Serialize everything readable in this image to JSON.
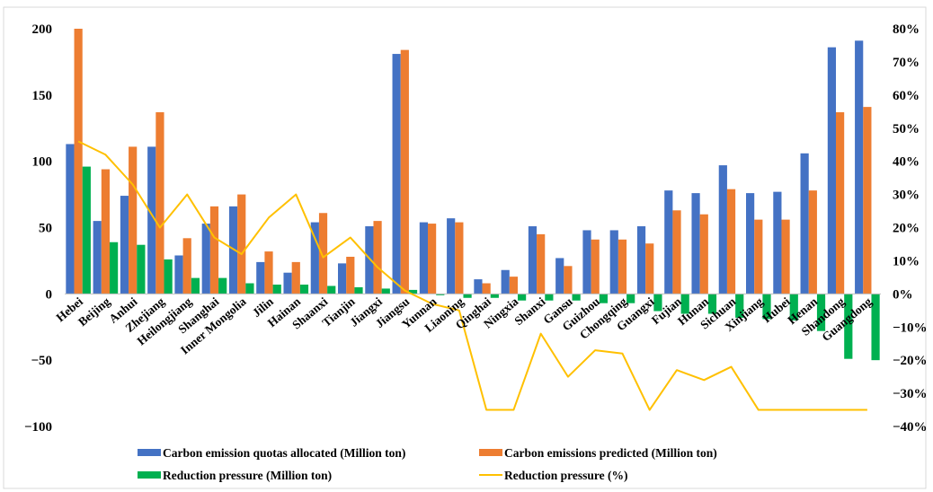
{
  "chart_data": {
    "type": "bar",
    "title": "",
    "xlabel": "",
    "ylabel": "",
    "y2label": "",
    "ylim": [
      -100,
      200
    ],
    "yticks": [
      -100,
      -50,
      0,
      50,
      100,
      150,
      200
    ],
    "y2lim": [
      -40,
      80
    ],
    "y2ticks": [
      -40,
      -30,
      -20,
      -10,
      0,
      10,
      20,
      30,
      40,
      50,
      60,
      70,
      80
    ],
    "y2_tick_suffix": "%",
    "grid": false,
    "legend_position": "bottom",
    "categories": [
      "Hebei",
      "Beijing",
      "Anhui",
      "Zhejiang",
      "Heilongjiang",
      "Shanghai",
      "Inner Mongolia",
      "Jilin",
      "Hainan",
      "Shaanxi",
      "Tianjin",
      "Jiangxi",
      "Jiangsu",
      "Yunnan",
      "Liaoning",
      "Qinghai",
      "Ningxia",
      "Shanxi",
      "Gansu",
      "Guizhou",
      "Chongqing",
      "Guangxi",
      "Fujian",
      "Hunan",
      "Sichuan",
      "Xinjiang",
      "Hubei",
      "Henan",
      "Shandong",
      "Guangdong"
    ],
    "series": [
      {
        "name": "Carbon emission quotas allocated (Million ton)",
        "kind": "bar",
        "axis": "left",
        "color": "#4472C4",
        "values": [
          113,
          55,
          74,
          111,
          29,
          53,
          66,
          24,
          16,
          54,
          23,
          51,
          181,
          54,
          57,
          11,
          18,
          51,
          27,
          48,
          48,
          51,
          78,
          76,
          97,
          76,
          77,
          106,
          186,
          191
        ]
      },
      {
        "name": "Carbon emissions predicted (Million ton)",
        "kind": "bar",
        "axis": "left",
        "color": "#ED7D31",
        "values": [
          200,
          94,
          111,
          137,
          42,
          66,
          75,
          32,
          24,
          61,
          28,
          55,
          184,
          53,
          54,
          8,
          13,
          45,
          21,
          41,
          41,
          38,
          63,
          60,
          79,
          56,
          56,
          78,
          137,
          141
        ]
      },
      {
        "name": "Reduction pressure (Million ton)",
        "kind": "bar",
        "axis": "left",
        "color": "#00B050",
        "values": [
          96,
          39,
          37,
          26,
          12,
          12,
          8,
          7,
          7,
          6,
          5,
          4,
          3,
          -1,
          -3,
          -3,
          -5,
          -5,
          -5,
          -7,
          -7,
          -13,
          -15,
          -15,
          -18,
          -19,
          -20,
          -28,
          -49,
          -50
        ]
      },
      {
        "name": "Reduction pressure (%)",
        "kind": "line",
        "axis": "right",
        "color": "#FFC000",
        "values": [
          46,
          42,
          33,
          20,
          30,
          17,
          12,
          23,
          30,
          11,
          17,
          8,
          1,
          -3,
          -5,
          -35,
          -35,
          -12,
          -25,
          -17,
          -18,
          -35,
          -23,
          -26,
          -22,
          -35,
          -35,
          -35,
          -35,
          -35
        ]
      }
    ]
  }
}
